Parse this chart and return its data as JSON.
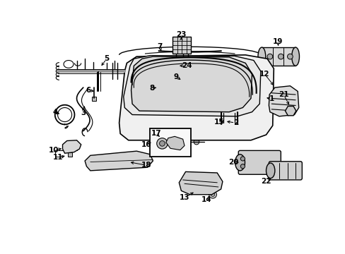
{
  "bg_color": "#ffffff",
  "fig_width": 4.89,
  "fig_height": 3.6,
  "dpi": 100,
  "lc": "#000000",
  "lw": 0.7,
  "fs": 7.5
}
